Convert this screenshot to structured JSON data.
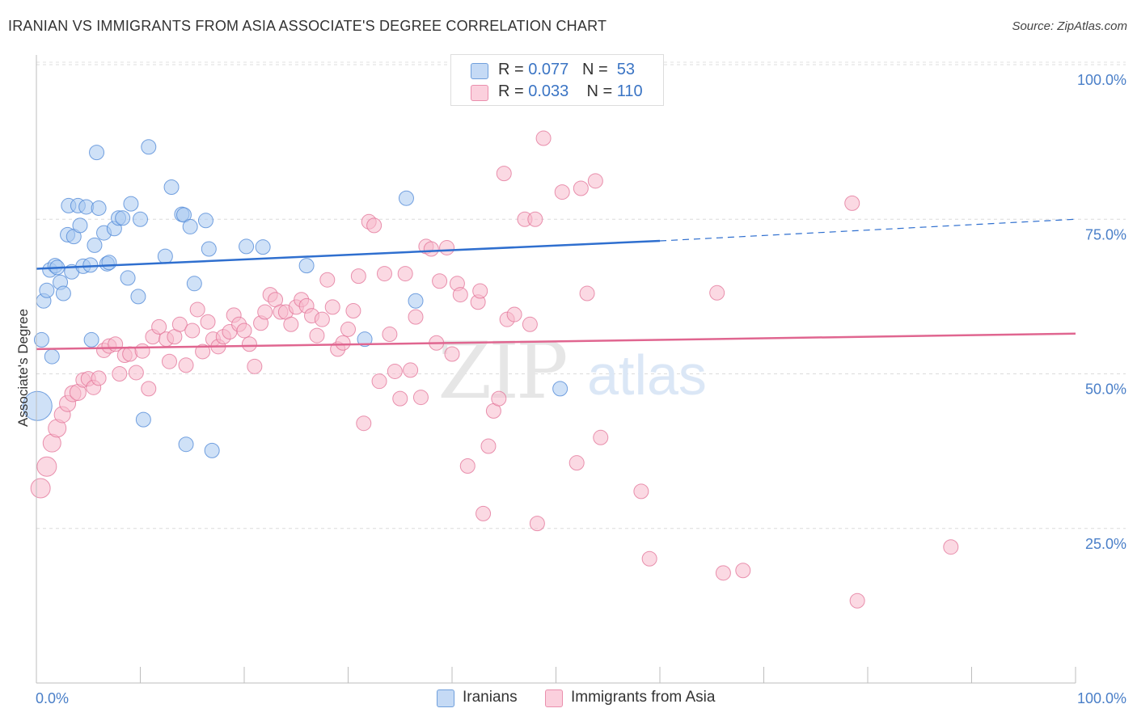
{
  "header": {
    "title": "IRANIAN VS IMMIGRANTS FROM ASIA ASSOCIATE'S DEGREE CORRELATION CHART",
    "source": "Source: ZipAtlas.com"
  },
  "watermark": {
    "zip": "ZIP",
    "atlas": "atlas"
  },
  "legend": {
    "iranians": {
      "r_label": "R =",
      "r_value": "0.077",
      "n_label": "N =",
      "n_value": "53",
      "color": "#a8c8f0"
    },
    "asia": {
      "r_label": "R =",
      "r_value": "0.033",
      "n_label": "N =",
      "n_value": "110",
      "color": "#f7b9cc"
    }
  },
  "bottom_legend": {
    "iranians": "Iranians",
    "asia": "Immigrants from Asia"
  },
  "chart_data": {
    "type": "scatter",
    "ylabel": "Associate's Degree",
    "xlim": [
      0,
      100
    ],
    "ylim": [
      0,
      100
    ],
    "x_tick_labels": [
      "0.0%",
      "100.0%"
    ],
    "y_tick_labels": [
      {
        "label": "100.0%",
        "value": 100
      },
      {
        "label": "75.0%",
        "value": 75
      },
      {
        "label": "50.0%",
        "value": 50
      },
      {
        "label": "25.0%",
        "value": 25
      }
    ],
    "grid": true,
    "colors": {
      "iranians": "#4a84d6",
      "iranians_fill": "#a8c8f0",
      "asia": "#e27096",
      "asia_fill": "#f7b9cc"
    },
    "series": [
      {
        "name": "Iranians",
        "trend": {
          "x0": 0,
          "y0": 67.0,
          "x1": 60,
          "y1": 71.5,
          "dashed_to_x": 100,
          "dashed_to_y": 75.0
        },
        "points": [
          [
            0.5,
            55.5
          ],
          [
            0.7,
            61.8
          ],
          [
            1.0,
            63.5
          ],
          [
            1.3,
            66.8
          ],
          [
            1.5,
            52.8
          ],
          [
            1.8,
            67.5
          ],
          [
            2.0,
            67.2
          ],
          [
            2.3,
            64.8
          ],
          [
            2.6,
            63.0
          ],
          [
            3.0,
            72.5
          ],
          [
            3.1,
            77.2
          ],
          [
            3.4,
            66.5
          ],
          [
            3.6,
            72.2
          ],
          [
            4.0,
            77.2
          ],
          [
            4.2,
            74.0
          ],
          [
            4.5,
            67.4
          ],
          [
            4.8,
            77.0
          ],
          [
            5.2,
            67.6
          ],
          [
            5.3,
            55.5
          ],
          [
            5.6,
            70.8
          ],
          [
            5.8,
            85.8
          ],
          [
            6.0,
            76.8
          ],
          [
            6.5,
            72.8
          ],
          [
            6.8,
            67.8
          ],
          [
            7.0,
            68.0
          ],
          [
            7.5,
            73.5
          ],
          [
            7.9,
            75.2
          ],
          [
            8.3,
            75.2
          ],
          [
            8.8,
            65.5
          ],
          [
            9.1,
            77.5
          ],
          [
            9.8,
            62.5
          ],
          [
            10.0,
            75.0
          ],
          [
            10.3,
            42.6
          ],
          [
            10.8,
            86.7
          ],
          [
            12.4,
            69.0
          ],
          [
            13.0,
            80.2
          ],
          [
            14.0,
            75.8
          ],
          [
            14.2,
            75.7
          ],
          [
            14.4,
            38.6
          ],
          [
            14.8,
            73.8
          ],
          [
            15.2,
            64.6
          ],
          [
            16.3,
            74.8
          ],
          [
            16.6,
            70.2
          ],
          [
            16.9,
            37.6
          ],
          [
            20.2,
            70.6
          ],
          [
            21.8,
            70.5
          ],
          [
            26.0,
            67.5
          ],
          [
            31.6,
            55.6
          ],
          [
            35.6,
            78.4
          ],
          [
            36.5,
            61.8
          ],
          [
            50.4,
            47.6
          ],
          [
            54.0,
            100.0
          ],
          [
            0.1,
            44.8
          ]
        ],
        "sizes": [
          9,
          9,
          9,
          9,
          9,
          9,
          9,
          9,
          9,
          9,
          9,
          9,
          9,
          9,
          9,
          9,
          9,
          9,
          9,
          9,
          9,
          9,
          9,
          9,
          9,
          9,
          9,
          9,
          9,
          9,
          9,
          9,
          9,
          9,
          9,
          9,
          9,
          9,
          9,
          9,
          9,
          9,
          9,
          9,
          9,
          9,
          9,
          9,
          9,
          9,
          9,
          9,
          18
        ]
      },
      {
        "name": "Immigrants from Asia",
        "trend": {
          "x0": 0,
          "y0": 54.0,
          "x1": 100,
          "y1": 56.5
        },
        "points": [
          [
            0.4,
            31.5
          ],
          [
            1.0,
            35.0
          ],
          [
            1.5,
            38.8
          ],
          [
            2.0,
            41.2
          ],
          [
            2.5,
            43.4
          ],
          [
            3.0,
            45.2
          ],
          [
            3.5,
            46.8
          ],
          [
            4.0,
            47.0
          ],
          [
            4.5,
            49.0
          ],
          [
            5.0,
            49.2
          ],
          [
            5.5,
            47.8
          ],
          [
            6.0,
            49.3
          ],
          [
            6.5,
            53.8
          ],
          [
            7.0,
            54.5
          ],
          [
            7.6,
            54.8
          ],
          [
            8.0,
            50.0
          ],
          [
            8.5,
            53.0
          ],
          [
            9.0,
            53.2
          ],
          [
            9.6,
            50.2
          ],
          [
            10.2,
            53.7
          ],
          [
            10.8,
            47.6
          ],
          [
            11.2,
            56.0
          ],
          [
            11.8,
            57.6
          ],
          [
            12.5,
            55.6
          ],
          [
            12.8,
            52.0
          ],
          [
            13.3,
            56.0
          ],
          [
            13.8,
            58.0
          ],
          [
            14.4,
            51.4
          ],
          [
            15.0,
            57.0
          ],
          [
            15.5,
            60.4
          ],
          [
            16.0,
            53.6
          ],
          [
            16.5,
            58.4
          ],
          [
            17.0,
            55.6
          ],
          [
            17.5,
            54.4
          ],
          [
            18.0,
            56.0
          ],
          [
            18.6,
            56.8
          ],
          [
            19.0,
            59.5
          ],
          [
            19.5,
            58.0
          ],
          [
            20.0,
            57.0
          ],
          [
            20.5,
            54.8
          ],
          [
            21.0,
            51.2
          ],
          [
            21.6,
            58.2
          ],
          [
            22.0,
            60.0
          ],
          [
            22.5,
            62.8
          ],
          [
            23.0,
            62.0
          ],
          [
            23.5,
            60.0
          ],
          [
            24.0,
            60.0
          ],
          [
            24.5,
            58.0
          ],
          [
            25.0,
            60.8
          ],
          [
            25.5,
            62.0
          ],
          [
            26.0,
            61.0
          ],
          [
            26.5,
            59.4
          ],
          [
            27.0,
            56.2
          ],
          [
            27.5,
            58.8
          ],
          [
            28.0,
            65.2
          ],
          [
            28.5,
            60.8
          ],
          [
            29.0,
            54.0
          ],
          [
            29.5,
            55.0
          ],
          [
            30.0,
            57.2
          ],
          [
            30.5,
            60.2
          ],
          [
            31.0,
            65.8
          ],
          [
            31.5,
            42.0
          ],
          [
            32.0,
            74.6
          ],
          [
            32.5,
            74.0
          ],
          [
            33.0,
            48.8
          ],
          [
            33.5,
            66.2
          ],
          [
            34.0,
            56.4
          ],
          [
            34.5,
            50.4
          ],
          [
            35.0,
            46.0
          ],
          [
            35.5,
            66.2
          ],
          [
            36.0,
            50.6
          ],
          [
            36.5,
            59.2
          ],
          [
            37.0,
            46.2
          ],
          [
            37.5,
            70.6
          ],
          [
            38.0,
            70.2
          ],
          [
            38.5,
            55.0
          ],
          [
            38.8,
            65.0
          ],
          [
            39.5,
            70.4
          ],
          [
            40.0,
            53.2
          ],
          [
            40.5,
            64.6
          ],
          [
            40.8,
            62.8
          ],
          [
            41.5,
            35.1
          ],
          [
            42.5,
            61.6
          ],
          [
            42.7,
            63.4
          ],
          [
            43.0,
            27.4
          ],
          [
            43.5,
            38.3
          ],
          [
            44.0,
            44.0
          ],
          [
            44.5,
            46.0
          ],
          [
            45.0,
            82.4
          ],
          [
            45.3,
            58.8
          ],
          [
            46.0,
            59.6
          ],
          [
            47.0,
            75.0
          ],
          [
            47.5,
            58.0
          ],
          [
            48.0,
            75.0
          ],
          [
            48.2,
            25.8
          ],
          [
            48.8,
            88.1
          ],
          [
            50.6,
            79.4
          ],
          [
            52.0,
            35.6
          ],
          [
            52.4,
            80.0
          ],
          [
            53.0,
            63.0
          ],
          [
            53.8,
            81.2
          ],
          [
            54.3,
            39.7
          ],
          [
            58.2,
            31.0
          ],
          [
            59.0,
            20.1
          ],
          [
            65.5,
            63.1
          ],
          [
            66.1,
            17.8
          ],
          [
            68.0,
            18.2
          ],
          [
            78.5,
            77.6
          ],
          [
            88.0,
            22.0
          ],
          [
            79.0,
            13.3
          ]
        ],
        "sizes": [
          12,
          12,
          11,
          11,
          10,
          10,
          10,
          10,
          9,
          9,
          9,
          9,
          9,
          9,
          9,
          9,
          9,
          9,
          9,
          9,
          9,
          9,
          9,
          9,
          9,
          9,
          9,
          9,
          9,
          9,
          9,
          9,
          9,
          9,
          9,
          9,
          9,
          9,
          9,
          9,
          9,
          9,
          9,
          9,
          9,
          9,
          9,
          9,
          9,
          9,
          9,
          9,
          9,
          9,
          9,
          9,
          9,
          9,
          9,
          9,
          9,
          9,
          9,
          9,
          9,
          9,
          9,
          9,
          9,
          9,
          9,
          9,
          9,
          9,
          9,
          9,
          9,
          9,
          9,
          9,
          9,
          9,
          9,
          9,
          9,
          9,
          9,
          9,
          9,
          9,
          9,
          9,
          9,
          9,
          9,
          9,
          9,
          9,
          9,
          9,
          9,
          9,
          9,
          9,
          9,
          9,
          9,
          9,
          9,
          9
        ]
      }
    ]
  }
}
